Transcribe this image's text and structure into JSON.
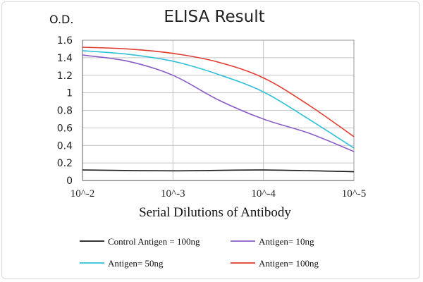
{
  "chart_data": {
    "type": "line",
    "title": "ELISA Result",
    "ylabel": "O.D.",
    "xlabel": "Serial Dilutions  of Antibody",
    "x_ticks": [
      "10^-2",
      "10^-3",
      "10^-4",
      "10^-5"
    ],
    "x": [
      0.01,
      0.001,
      0.0001,
      1e-05
    ],
    "x_scale": "log",
    "y_ticks": [
      "0",
      "0.2",
      "0.4",
      "0.6",
      "0.8",
      "1",
      "1.2",
      "1.4",
      "1.6"
    ],
    "ylim": [
      0,
      1.6
    ],
    "grid": true,
    "legend_position": "bottom",
    "series": [
      {
        "name": "Control Antigen = 100ng",
        "color": "#1a1a1a",
        "x": [
          0.01,
          0.001,
          0.0001,
          1e-05
        ],
        "values": [
          0.12,
          0.11,
          0.12,
          0.1
        ]
      },
      {
        "name": "Antigen= 10ng",
        "color": "#8a5cc7",
        "x": [
          0.01,
          0.00316,
          0.001,
          0.000316,
          0.0001,
          3.16e-05,
          1e-05
        ],
        "values": [
          1.43,
          1.36,
          1.2,
          0.92,
          0.7,
          0.54,
          0.33
        ]
      },
      {
        "name": "Antigen= 50ng",
        "color": "#2fc0d8",
        "x": [
          0.01,
          0.00316,
          0.001,
          0.000316,
          0.0001,
          3.16e-05,
          1e-05
        ],
        "values": [
          1.48,
          1.44,
          1.36,
          1.21,
          1.01,
          0.7,
          0.37
        ]
      },
      {
        "name": "Antigen= 100ng",
        "color": "#e03a2e",
        "x": [
          0.01,
          0.00316,
          0.001,
          0.000316,
          0.0001,
          3.16e-05,
          1e-05
        ],
        "values": [
          1.52,
          1.5,
          1.45,
          1.35,
          1.17,
          0.86,
          0.5
        ]
      }
    ]
  }
}
